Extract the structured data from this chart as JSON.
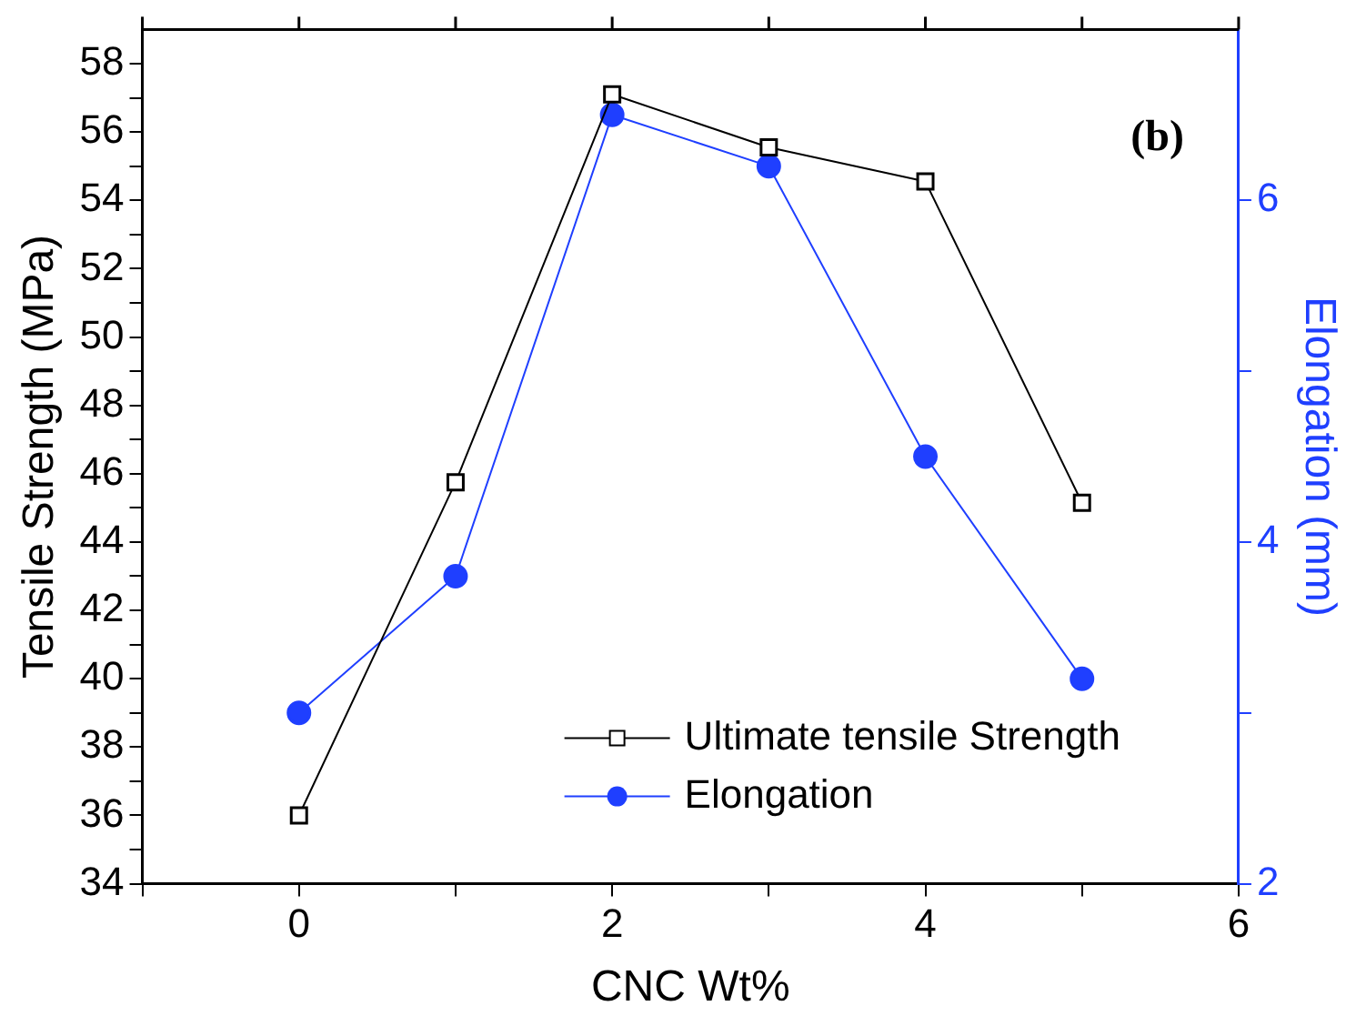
{
  "chart_data": {
    "type": "line",
    "xlabel": "CNC Wt%",
    "ylabel": "Tensile Strength (MPa)",
    "y2label": "Elongation (mm)",
    "annotations": [
      "(b)"
    ],
    "x": [
      0,
      1,
      2,
      3,
      4,
      5
    ],
    "series": [
      {
        "name": "Ultimate tensile Strength",
        "color": "#000000",
        "marker": "square",
        "values": [
          36,
          45.75,
          57.1,
          55.55,
          54.55,
          45.15
        ]
      },
      {
        "name": "Elongation",
        "color": "#1f3fff",
        "marker": "circle",
        "axis": "y2",
        "values": [
          3.0,
          3.8,
          6.5,
          6.2,
          4.5,
          3.2
        ]
      }
    ],
    "xlim": [
      -1,
      6
    ],
    "xticks": [
      {
        "value": -1,
        "label": null
      },
      0,
      {
        "value": 1,
        "label": null
      },
      2,
      {
        "value": 3,
        "label": null
      },
      4,
      {
        "value": 5,
        "label": null
      },
      6
    ],
    "ylim": [
      34,
      59
    ],
    "yticks": [
      34,
      {
        "value": 35,
        "label": null
      },
      36,
      {
        "value": 37,
        "label": null
      },
      38,
      {
        "value": 39,
        "label": null
      },
      40,
      {
        "value": 41,
        "label": null
      },
      42,
      {
        "value": 43,
        "label": null
      },
      44,
      {
        "value": 45,
        "label": null
      },
      46,
      {
        "value": 47,
        "label": null
      },
      48,
      {
        "value": 49,
        "label": null
      },
      50,
      {
        "value": 51,
        "label": null
      },
      52,
      {
        "value": 53,
        "label": null
      },
      54,
      {
        "value": 55,
        "label": null
      },
      56,
      {
        "value": 57,
        "label": null
      },
      58
    ],
    "y2lim": [
      2,
      7
    ],
    "y2ticks": [
      2,
      {
        "value": 3,
        "label": null
      },
      4,
      {
        "value": 5,
        "label": null
      },
      6
    ],
    "grid": false,
    "legend": "bottom right",
    "line_style": "solid"
  }
}
